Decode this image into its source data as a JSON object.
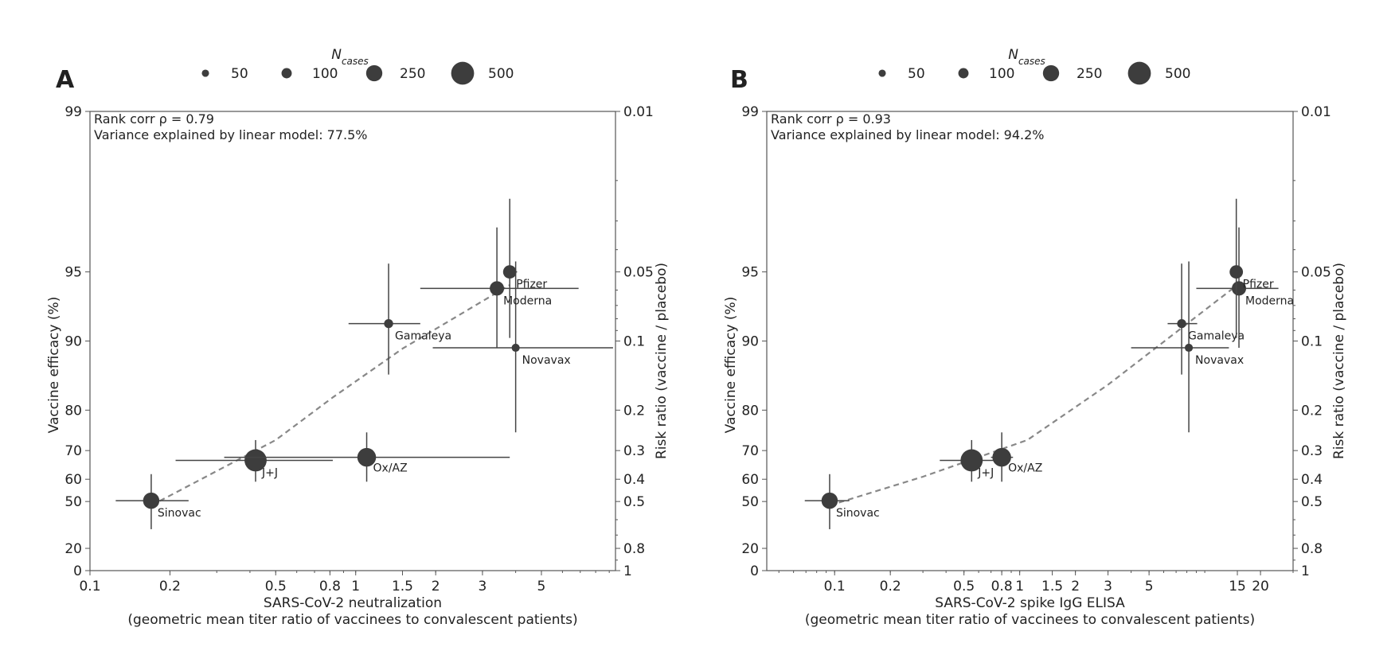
{
  "legend": {
    "title_base": "N",
    "title_sub": "cases",
    "sizes": [
      {
        "label": "50",
        "n": 50
      },
      {
        "label": "100",
        "n": 100
      },
      {
        "label": "250",
        "n": 250
      },
      {
        "label": "500",
        "n": 500
      }
    ]
  },
  "chart_data": [
    {
      "type": "scatter",
      "panel": "A",
      "annotation_corr": "Rank corr ρ = 0.79",
      "annotation_var": "Variance explained by linear model: 77.5%",
      "xlabel": "SARS-CoV-2 neutralization",
      "xlabel2": "(geometric mean titer ratio of vaccinees to convalescent patients)",
      "ylabel": "Vaccine efficacy (%)",
      "ylabel_right": "Risk ratio (vaccine / placebo)",
      "xscale": "log",
      "xlim": [
        0.1,
        9.5
      ],
      "ylim_risk_ratio": [
        0.01,
        1
      ],
      "xticks": [
        {
          "v": 0.1,
          "label": "0.1"
        },
        {
          "v": 0.2,
          "label": "0.2"
        },
        {
          "v": 0.5,
          "label": "0.5"
        },
        {
          "v": 0.8,
          "label": "0.8"
        },
        {
          "v": 1,
          "label": "1"
        },
        {
          "v": 1.5,
          "label": "1.5"
        },
        {
          "v": 2,
          "label": "2"
        },
        {
          "v": 3,
          "label": "3"
        },
        {
          "v": 5,
          "label": "5"
        }
      ],
      "points": [
        {
          "name": "Sinovac",
          "x": 0.17,
          "x_lo": 0.125,
          "x_hi": 0.235,
          "efficacy": 50.4,
          "eff_lo": 34,
          "eff_hi": 62,
          "n": 253
        },
        {
          "name": "J+J",
          "x": 0.42,
          "x_lo": 0.21,
          "x_hi": 0.82,
          "efficacy": 66.9,
          "eff_lo": 59,
          "eff_hi": 73,
          "n": 468
        },
        {
          "name": "Ox/AZ",
          "x": 1.1,
          "x_lo": 0.32,
          "x_hi": 3.8,
          "efficacy": 67.9,
          "eff_lo": 59,
          "eff_hi": 75,
          "n": 332
        },
        {
          "name": "Gamaleya",
          "x": 1.33,
          "x_lo": 0.94,
          "x_hi": 1.75,
          "efficacy": 91.6,
          "eff_lo": 86,
          "eff_hi": 95.4,
          "n": 78
        },
        {
          "name": "Novavax",
          "x": 4.0,
          "x_lo": 1.95,
          "x_hi": 9.3,
          "efficacy": 89.3,
          "eff_lo": 75,
          "eff_hi": 95.5,
          "n": 62
        },
        {
          "name": "Moderna",
          "x": 3.4,
          "x_lo": 1.75,
          "x_hi": 6.9,
          "efficacy": 94.1,
          "eff_lo": 89.3,
          "eff_hi": 96.8,
          "n": 196
        },
        {
          "name": "Pfizer",
          "x": 3.8,
          "x_lo": 3.6,
          "x_hi": 4.05,
          "efficacy": 95.0,
          "eff_lo": 90.3,
          "eff_hi": 97.6,
          "n": 170
        }
      ],
      "fit_line": [
        {
          "x": 0.17,
          "efficacy": 48
        },
        {
          "x": 0.5,
          "efficacy": 73
        },
        {
          "x": 0.82,
          "efficacy": 82.4
        },
        {
          "x": 1.5,
          "efficacy": 89.2
        },
        {
          "x": 3.8,
          "efficacy": 94.3
        }
      ]
    },
    {
      "type": "scatter",
      "panel": "B",
      "annotation_corr": "Rank corr ρ = 0.93",
      "annotation_var": "Variance explained by linear model: 94.2%",
      "xlabel": "SARS-CoV-2 spike IgG ELISA",
      "xlabel2": "(geometric mean titer ratio of vaccinees to convalescent patients)",
      "ylabel": "Vaccine efficacy (%)",
      "ylabel_right": "Risk ratio (vaccine / placebo)",
      "xscale": "log",
      "xlim": [
        0.043,
        30
      ],
      "ylim_risk_ratio": [
        0.01,
        1
      ],
      "xticks": [
        {
          "v": 0.1,
          "label": "0.1"
        },
        {
          "v": 0.2,
          "label": "0.2"
        },
        {
          "v": 0.5,
          "label": "0.5"
        },
        {
          "v": 0.8,
          "label": "0.8"
        },
        {
          "v": 1,
          "label": "1"
        },
        {
          "v": 1.5,
          "label": "1.5"
        },
        {
          "v": 2,
          "label": "2"
        },
        {
          "v": 3,
          "label": "3"
        },
        {
          "v": 5,
          "label": "5"
        },
        {
          "v": 15,
          "label": "15"
        },
        {
          "v": 20,
          "label": "20"
        }
      ],
      "points": [
        {
          "name": "Sinovac",
          "x": 0.094,
          "x_lo": 0.069,
          "x_hi": 0.12,
          "efficacy": 50.4,
          "eff_lo": 34,
          "eff_hi": 62,
          "n": 253
        },
        {
          "name": "J+J",
          "x": 0.55,
          "x_lo": 0.37,
          "x_hi": 0.8,
          "efficacy": 66.9,
          "eff_lo": 59,
          "eff_hi": 73,
          "n": 468
        },
        {
          "name": "Ox/AZ",
          "x": 0.8,
          "x_lo": 0.7,
          "x_hi": 0.92,
          "efficacy": 67.9,
          "eff_lo": 59,
          "eff_hi": 75,
          "n": 332
        },
        {
          "name": "Gamaleya",
          "x": 7.5,
          "x_lo": 6.3,
          "x_hi": 9.1,
          "efficacy": 91.6,
          "eff_lo": 86,
          "eff_hi": 95.4,
          "n": 78
        },
        {
          "name": "Novavax",
          "x": 8.2,
          "x_lo": 4.0,
          "x_hi": 13.5,
          "efficacy": 89.3,
          "eff_lo": 75,
          "eff_hi": 95.5,
          "n": 62
        },
        {
          "name": "Moderna",
          "x": 15.3,
          "x_lo": 9.0,
          "x_hi": 25,
          "efficacy": 94.1,
          "eff_lo": 89.3,
          "eff_hi": 96.8,
          "n": 196
        },
        {
          "name": "Pfizer",
          "x": 14.8,
          "x_lo": 14.0,
          "x_hi": 15.8,
          "efficacy": 95.0,
          "eff_lo": 90.3,
          "eff_hi": 97.6,
          "n": 170
        }
      ],
      "fit_line": [
        {
          "x": 0.094,
          "efficacy": 48
        },
        {
          "x": 0.3,
          "efficacy": 61
        },
        {
          "x": 1.1,
          "efficacy": 73
        },
        {
          "x": 3,
          "efficacy": 84.5
        },
        {
          "x": 15,
          "efficacy": 94.3
        }
      ]
    }
  ]
}
